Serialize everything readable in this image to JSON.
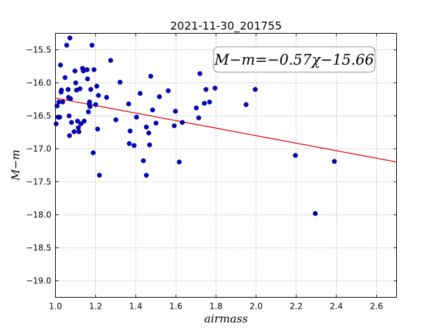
{
  "chart_data": {
    "type": "scatter",
    "title": "2021-11-30_201755",
    "xlabel": "airmass",
    "ylabel": "M−m",
    "xlim": [
      1.0,
      2.7
    ],
    "ylim": [
      -19.25,
      -15.25
    ],
    "y_inverted": true,
    "grid": true,
    "x_ticks": [
      "1.0",
      "1.2",
      "1.4",
      "1.6",
      "1.8",
      "2.0",
      "2.2",
      "2.4",
      "2.6"
    ],
    "y_ticks": [
      "−15.5",
      "−16.0",
      "−16.5",
      "−17.0",
      "−17.5",
      "−18.0",
      "−18.5",
      "−19.0"
    ],
    "annotation": "M−m=−0.57χ−15.66",
    "point_color": "#0000cc",
    "line_color": "#dd0000",
    "fit": {
      "slope": -0.57,
      "intercept": -15.66
    },
    "points": [
      [
        1.003,
        -16.62
      ],
      [
        1.008,
        -16.35
      ],
      [
        1.013,
        -16.52
      ],
      [
        1.017,
        -16.29
      ],
      [
        1.021,
        -16.52
      ],
      [
        1.025,
        -15.73
      ],
      [
        1.028,
        -16.14
      ],
      [
        1.03,
        -16.11
      ],
      [
        1.036,
        -16.29
      ],
      [
        1.048,
        -15.92
      ],
      [
        1.056,
        -15.43
      ],
      [
        1.063,
        -16.1
      ],
      [
        1.065,
        -16.22
      ],
      [
        1.068,
        -16.5
      ],
      [
        1.07,
        -16.8
      ],
      [
        1.072,
        -15.32
      ],
      [
        1.075,
        -16.24
      ],
      [
        1.08,
        -16.6
      ],
      [
        1.093,
        -16.74
      ],
      [
        1.097,
        -15.82
      ],
      [
        1.101,
        -16.0
      ],
      [
        1.105,
        -16.11
      ],
      [
        1.11,
        -16.58
      ],
      [
        1.114,
        -16.68
      ],
      [
        1.117,
        -16.74
      ],
      [
        1.122,
        -16.09
      ],
      [
        1.127,
        -16.62
      ],
      [
        1.135,
        -15.78
      ],
      [
        1.139,
        -15.82
      ],
      [
        1.143,
        -16.58
      ],
      [
        1.158,
        -15.8
      ],
      [
        1.16,
        -15.94
      ],
      [
        1.164,
        -16.44
      ],
      [
        1.168,
        -16.32
      ],
      [
        1.17,
        -16.29
      ],
      [
        1.172,
        -16.36
      ],
      [
        1.176,
        -16.1
      ],
      [
        1.182,
        -15.43
      ],
      [
        1.188,
        -17.06
      ],
      [
        1.192,
        -15.8
      ],
      [
        1.2,
        -16.33
      ],
      [
        1.206,
        -16.05
      ],
      [
        1.21,
        -16.7
      ],
      [
        1.214,
        -16.19
      ],
      [
        1.219,
        -17.4
      ],
      [
        1.255,
        -16.22
      ],
      [
        1.275,
        -15.66
      ],
      [
        1.301,
        -16.56
      ],
      [
        1.322,
        -15.99
      ],
      [
        1.365,
        -16.32
      ],
      [
        1.368,
        -16.92
      ],
      [
        1.372,
        -16.73
      ],
      [
        1.392,
        -16.95
      ],
      [
        1.404,
        -16.52
      ],
      [
        1.422,
        -16.16
      ],
      [
        1.438,
        -17.18
      ],
      [
        1.453,
        -16.67
      ],
      [
        1.453,
        -17.4
      ],
      [
        1.465,
        -16.76
      ],
      [
        1.469,
        -16.94
      ],
      [
        1.475,
        -15.9
      ],
      [
        1.484,
        -16.41
      ],
      [
        1.501,
        -16.61
      ],
      [
        1.518,
        -16.21
      ],
      [
        1.562,
        -16.12
      ],
      [
        1.592,
        -16.65
      ],
      [
        1.598,
        -16.43
      ],
      [
        1.617,
        -17.2
      ],
      [
        1.632,
        -16.6
      ],
      [
        1.702,
        -16.38
      ],
      [
        1.714,
        -16.53
      ],
      [
        1.72,
        -15.86
      ],
      [
        1.742,
        -16.31
      ],
      [
        1.75,
        -16.1
      ],
      [
        1.768,
        -16.29
      ],
      [
        1.795,
        -16.08
      ],
      [
        1.95,
        -16.33
      ],
      [
        1.996,
        -16.1
      ],
      [
        2.196,
        -17.1
      ],
      [
        2.295,
        -17.98
      ],
      [
        2.39,
        -17.19
      ]
    ]
  }
}
